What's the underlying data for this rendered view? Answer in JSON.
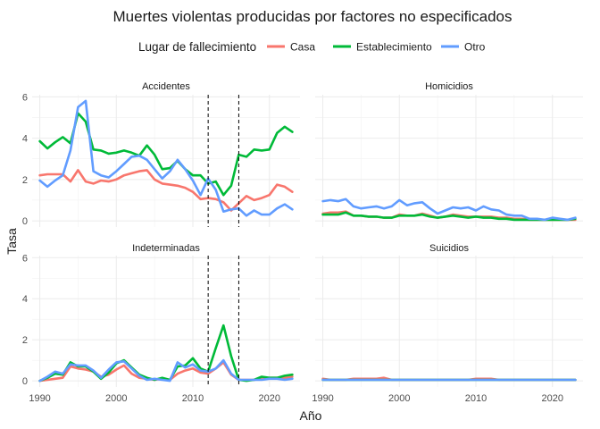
{
  "chart_data": {
    "type": "line",
    "title": "Muertes violentas producidas por factores no especificados",
    "xlabel": "Año",
    "ylabel": "Tasa",
    "legend": {
      "title": "Lugar de fallecimiento",
      "position": "top",
      "entries": [
        "Casa",
        "Establecimiento",
        "Otro"
      ]
    },
    "colors": {
      "Casa": "#F8766D",
      "Establecimiento": "#00BA38",
      "Otro": "#619CFF"
    },
    "xlim": [
      1989,
      2024
    ],
    "ylim": [
      -0.3,
      6.1
    ],
    "xticks": [
      1990,
      2000,
      2010,
      2020
    ],
    "yticks": [
      0,
      2,
      4,
      6
    ],
    "grid": true,
    "vlines": [
      2012,
      2016
    ],
    "years": [
      1990,
      1991,
      1992,
      1993,
      1994,
      1995,
      1996,
      1997,
      1998,
      1999,
      2000,
      2001,
      2002,
      2003,
      2004,
      2005,
      2006,
      2007,
      2008,
      2009,
      2010,
      2011,
      2012,
      2013,
      2014,
      2015,
      2016,
      2017,
      2018,
      2019,
      2020,
      2021,
      2022,
      2023
    ],
    "panels": [
      {
        "title": "Accidentes",
        "series": [
          {
            "name": "Casa",
            "values": [
              2.2,
              2.25,
              2.25,
              2.25,
              1.9,
              2.45,
              1.9,
              1.8,
              1.95,
              1.9,
              2.0,
              2.2,
              2.3,
              2.4,
              2.45,
              2.0,
              1.8,
              1.75,
              1.7,
              1.6,
              1.4,
              1.05,
              1.1,
              1.05,
              0.9,
              0.5,
              0.85,
              1.2,
              1.0,
              1.1,
              1.25,
              1.75,
              1.65,
              1.4
            ]
          },
          {
            "name": "Establecimiento",
            "values": [
              3.85,
              3.5,
              3.8,
              4.05,
              3.75,
              5.2,
              4.8,
              3.45,
              3.4,
              3.25,
              3.3,
              3.4,
              3.3,
              3.15,
              3.65,
              3.2,
              2.5,
              2.55,
              2.9,
              2.5,
              2.2,
              2.2,
              1.8,
              1.9,
              1.25,
              1.7,
              3.2,
              3.1,
              3.45,
              3.4,
              3.45,
              4.25,
              4.55,
              4.3
            ]
          },
          {
            "name": "Otro",
            "values": [
              1.95,
              1.65,
              1.95,
              2.2,
              3.4,
              5.5,
              5.8,
              2.4,
              2.2,
              2.1,
              2.4,
              2.75,
              3.1,
              3.15,
              2.95,
              2.5,
              2.05,
              2.4,
              2.95,
              2.5,
              1.95,
              1.25,
              2.05,
              1.5,
              0.45,
              0.55,
              0.6,
              0.25,
              0.5,
              0.3,
              0.3,
              0.6,
              0.8,
              0.55
            ]
          }
        ]
      },
      {
        "title": "Homicidios",
        "series": [
          {
            "name": "Casa",
            "values": [
              0.35,
              0.4,
              0.4,
              0.45,
              0.25,
              0.25,
              0.2,
              0.2,
              0.15,
              0.15,
              0.3,
              0.25,
              0.25,
              0.35,
              0.25,
              0.15,
              0.2,
              0.3,
              0.25,
              0.2,
              0.2,
              0.2,
              0.2,
              0.15,
              0.15,
              0.1,
              0.1,
              0.05,
              0.05,
              0.05,
              0.05,
              0.05,
              0.05,
              0.05
            ]
          },
          {
            "name": "Establecimiento",
            "values": [
              0.3,
              0.3,
              0.3,
              0.4,
              0.25,
              0.25,
              0.2,
              0.2,
              0.15,
              0.15,
              0.25,
              0.25,
              0.25,
              0.3,
              0.2,
              0.15,
              0.2,
              0.25,
              0.2,
              0.15,
              0.2,
              0.15,
              0.15,
              0.1,
              0.1,
              0.05,
              0.05,
              0.05,
              0.05,
              0.05,
              0.05,
              0.05,
              0.05,
              0.1
            ]
          },
          {
            "name": "Otro",
            "values": [
              0.95,
              1.0,
              0.95,
              1.05,
              0.7,
              0.6,
              0.65,
              0.7,
              0.6,
              0.7,
              1.0,
              0.75,
              0.85,
              0.9,
              0.6,
              0.35,
              0.5,
              0.65,
              0.6,
              0.65,
              0.5,
              0.7,
              0.55,
              0.5,
              0.3,
              0.25,
              0.25,
              0.1,
              0.1,
              0.05,
              0.15,
              0.1,
              0.05,
              0.15
            ]
          }
        ]
      },
      {
        "title": "Indeterminadas",
        "series": [
          {
            "name": "Casa",
            "values": [
              0.0,
              0.05,
              0.1,
              0.15,
              0.7,
              0.6,
              0.55,
              0.45,
              0.2,
              0.3,
              0.55,
              0.75,
              0.35,
              0.15,
              0.1,
              0.05,
              0.1,
              0.05,
              0.35,
              0.5,
              0.6,
              0.4,
              0.35,
              0.6,
              0.9,
              0.3,
              0.05,
              0.05,
              0.05,
              0.1,
              0.15,
              0.15,
              0.15,
              0.2
            ]
          },
          {
            "name": "Establecimiento",
            "values": [
              0.0,
              0.15,
              0.35,
              0.3,
              0.9,
              0.7,
              0.7,
              0.45,
              0.1,
              0.4,
              0.85,
              1.0,
              0.65,
              0.3,
              0.15,
              0.05,
              0.15,
              0.05,
              0.7,
              0.75,
              1.1,
              0.6,
              0.45,
              1.6,
              2.7,
              1.2,
              0.05,
              0.0,
              0.05,
              0.2,
              0.15,
              0.15,
              0.25,
              0.3
            ]
          },
          {
            "name": "Otro",
            "values": [
              0.0,
              0.2,
              0.45,
              0.35,
              0.8,
              0.75,
              0.75,
              0.5,
              0.15,
              0.55,
              0.9,
              0.95,
              0.6,
              0.25,
              0.05,
              0.1,
              0.05,
              0.0,
              0.9,
              0.65,
              0.8,
              0.5,
              0.45,
              0.6,
              1.0,
              0.35,
              0.05,
              0.05,
              0.05,
              0.05,
              0.1,
              0.1,
              0.05,
              0.1
            ]
          }
        ]
      },
      {
        "title": "Suicidios",
        "series": [
          {
            "name": "Casa",
            "values": [
              0.1,
              0.05,
              0.05,
              0.05,
              0.1,
              0.1,
              0.1,
              0.1,
              0.15,
              0.05,
              0.05,
              0.05,
              0.05,
              0.05,
              0.05,
              0.05,
              0.05,
              0.05,
              0.05,
              0.05,
              0.1,
              0.1,
              0.1,
              0.05,
              0.05,
              0.05,
              0.05,
              0.05,
              0.05,
              0.05,
              0.05,
              0.05,
              0.05,
              0.05
            ]
          },
          {
            "name": "Establecimiento",
            "values": [
              0.05,
              0.05,
              0.05,
              0.05,
              0.05,
              0.05,
              0.05,
              0.05,
              0.05,
              0.05,
              0.05,
              0.05,
              0.05,
              0.05,
              0.05,
              0.05,
              0.05,
              0.05,
              0.05,
              0.05,
              0.05,
              0.05,
              0.05,
              0.05,
              0.05,
              0.05,
              0.05,
              0.05,
              0.05,
              0.05,
              0.05,
              0.05,
              0.05,
              0.05
            ]
          },
          {
            "name": "Otro",
            "values": [
              0.05,
              0.05,
              0.05,
              0.05,
              0.05,
              0.05,
              0.05,
              0.05,
              0.05,
              0.05,
              0.05,
              0.05,
              0.05,
              0.05,
              0.05,
              0.05,
              0.05,
              0.05,
              0.05,
              0.05,
              0.05,
              0.05,
              0.05,
              0.05,
              0.05,
              0.05,
              0.05,
              0.05,
              0.05,
              0.05,
              0.05,
              0.05,
              0.05,
              0.05
            ]
          }
        ]
      }
    ]
  }
}
